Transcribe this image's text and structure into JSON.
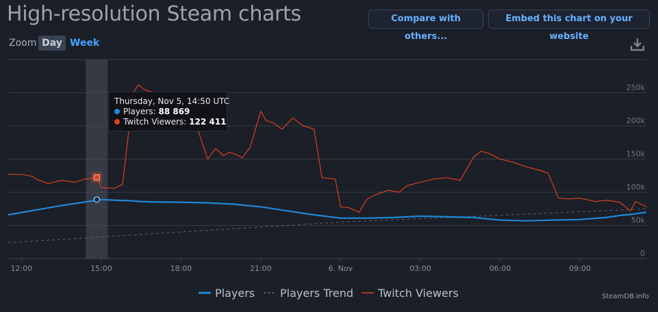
{
  "header": {
    "title": "High-resolution Steam charts",
    "compare_label": "Compare with others...",
    "embed_label": "Embed this chart on your website"
  },
  "zoom": {
    "label": "Zoom",
    "day_label": "Day",
    "week_label": "Week",
    "selected": "Day"
  },
  "tooltip": {
    "date": "Thursday, Nov 5, 14:50 UTC",
    "players_label": "Players:",
    "players_value": "88 869",
    "twitch_label": "Twitch Viewers:",
    "twitch_value": "122 411"
  },
  "legend": {
    "players": "Players",
    "trend": "Players Trend",
    "twitch": "Twitch Viewers"
  },
  "credit": "SteamDB.info",
  "colors": {
    "players": "#1e88d8",
    "twitch": "#d9411f",
    "trend": "#5a6170",
    "background": "#1b1f27",
    "grid": "#343b47",
    "accent": "#45a3ff"
  },
  "chart_data": {
    "type": "line",
    "x_unit": "hours since 12:00 UTC, Nov 5",
    "x_tick_labels": [
      "12:00",
      "15:00",
      "18:00",
      "21:00",
      "6. Nov",
      "03:00",
      "06:00",
      "09:00"
    ],
    "x_tick_hours": [
      0,
      3,
      6,
      9,
      12,
      15,
      18,
      21
    ],
    "xlim": [
      -0.5,
      23.5
    ],
    "y_ticks": [
      0,
      50000,
      100000,
      150000,
      200000,
      250000
    ],
    "y_tick_labels": [
      "0",
      "50k",
      "100k",
      "150k",
      "200k",
      "250k"
    ],
    "ylim": [
      0,
      300000
    ],
    "highlight_hour": 2.83,
    "series": [
      {
        "name": "Players",
        "x": [
          -0.5,
          0.5,
          1.5,
          2.5,
          3,
          3.5,
          4,
          4.5,
          5,
          6,
          7,
          8,
          9,
          10,
          11,
          12,
          13,
          14,
          15,
          16,
          17,
          18,
          19,
          20,
          21,
          22,
          22.5,
          23,
          23.5
        ],
        "values": [
          66000,
          73000,
          80000,
          86000,
          89000,
          88000,
          87500,
          86000,
          85500,
          85000,
          84000,
          82000,
          78000,
          72000,
          66000,
          61000,
          61000,
          62000,
          64000,
          63000,
          62000,
          58000,
          57000,
          58000,
          59000,
          62000,
          65000,
          67000,
          70000
        ]
      },
      {
        "name": "Players Trend",
        "x": [
          -0.5,
          12,
          23.5
        ],
        "values": [
          24000,
          55000,
          75000
        ]
      },
      {
        "name": "Twitch Viewers",
        "x": [
          -0.5,
          0,
          0.4,
          0.6,
          1,
          1.5,
          2,
          2.4,
          2.83,
          3,
          3.5,
          3.8,
          4.2,
          4.4,
          4.6,
          5,
          5.6,
          6,
          6.5,
          7,
          7.3,
          7.6,
          7.8,
          8,
          8.3,
          8.6,
          9,
          9.2,
          9.5,
          9.8,
          10.2,
          10.6,
          11,
          11.3,
          11.8,
          12,
          12.3,
          12.7,
          13,
          13.3,
          13.8,
          14.2,
          14.5,
          15,
          15.5,
          16,
          16.5,
          17,
          17.3,
          17.6,
          18,
          18.5,
          19,
          19.5,
          19.8,
          20.2,
          20.6,
          21,
          21.6,
          22,
          22.5,
          22.9,
          23.1,
          23.5
        ],
        "values": [
          127000,
          127000,
          124000,
          119000,
          113000,
          118000,
          115000,
          120000,
          122411,
          107000,
          106000,
          112000,
          250000,
          262000,
          255000,
          250000,
          249000,
          247000,
          210000,
          150000,
          166000,
          155000,
          160000,
          158000,
          152000,
          168000,
          222000,
          208000,
          204000,
          195000,
          212000,
          200000,
          195000,
          122000,
          120000,
          78000,
          77000,
          70000,
          90000,
          96000,
          103000,
          100000,
          110000,
          115000,
          120000,
          122000,
          118000,
          153000,
          162000,
          158000,
          150000,
          145000,
          138000,
          133000,
          129000,
          91000,
          90000,
          91000,
          86000,
          88000,
          85000,
          72000,
          86000,
          78000
        ]
      }
    ]
  }
}
